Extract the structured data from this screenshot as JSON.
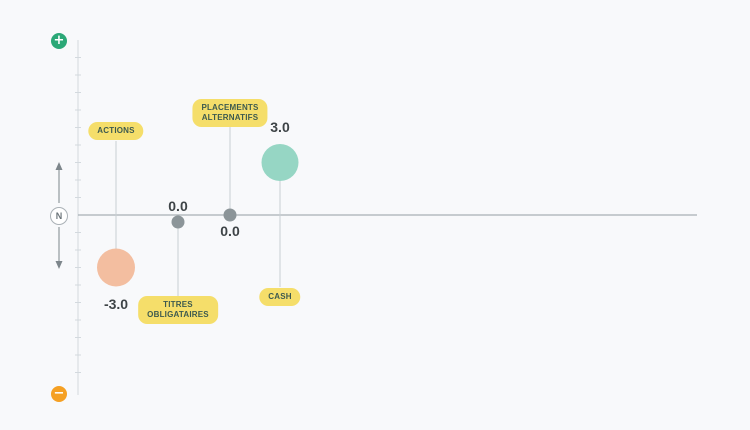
{
  "chart_data": {
    "type": "scatter",
    "ylim": [
      -10,
      10
    ],
    "grid": false,
    "axis": {
      "top_symbol": "+",
      "bottom_symbol": "−",
      "neutral_label": "N",
      "top_color": "#2ba877",
      "bottom_color": "#f5a023"
    },
    "series": [
      {
        "name": "ACTIONS",
        "value": -3.0,
        "value_label": "-3.0",
        "color": "#f3bea0"
      },
      {
        "name": "TITRES\nOBLIGATAIRES",
        "value": 0.0,
        "value_label": "0.0",
        "color": "#8c9599"
      },
      {
        "name": "PLACEMENTS\nALTERNATIFS",
        "value": 0.0,
        "value_label": "0.0",
        "color": "#8c9599"
      },
      {
        "name": "CASH",
        "value": 3.0,
        "value_label": "3.0",
        "color": "#96d6c4"
      }
    ]
  }
}
